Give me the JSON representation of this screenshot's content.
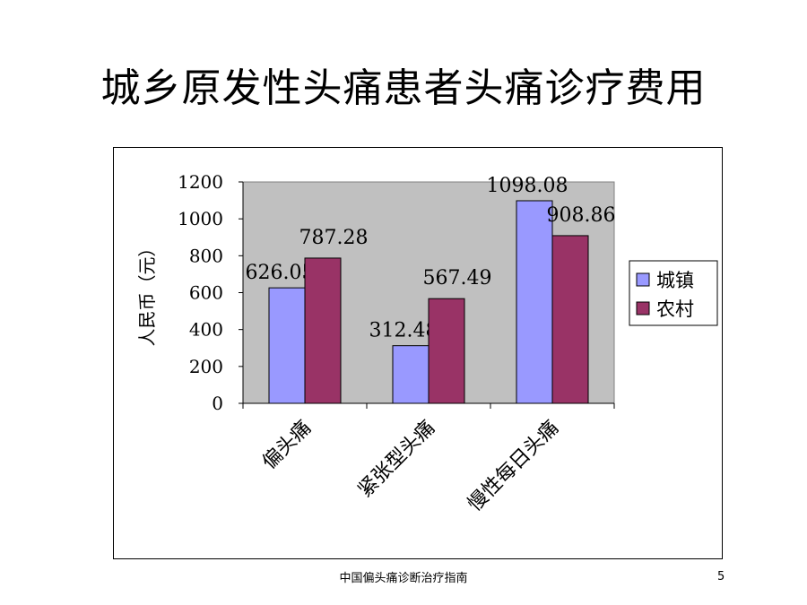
{
  "slide": {
    "title": "城乡原发性头痛患者头痛诊疗费用",
    "footer": "中国偏头痛诊断治疗指南",
    "page_number": "5"
  },
  "chart_data": {
    "type": "bar",
    "categories": [
      "偏头痛",
      "紧张型头痛",
      "慢性每日头痛"
    ],
    "series": [
      {
        "name": "城镇",
        "values": [
          626.05,
          312.48,
          1098.08
        ],
        "labels": [
          "626.05",
          "312.48",
          "1098.08"
        ],
        "color": "#9999ff"
      },
      {
        "name": "农村",
        "values": [
          787.28,
          567.49,
          908.86
        ],
        "labels": [
          "787.28",
          "567.49",
          "908.86"
        ],
        "color": "#993366"
      }
    ],
    "ylabel": "人民币（元）",
    "ylim": [
      0,
      1200
    ],
    "yticks": [
      "0",
      "200",
      "400",
      "600",
      "800",
      "1000",
      "1200"
    ],
    "plot_background": "#c0c0c0",
    "grid": false,
    "legend_position": "right"
  }
}
